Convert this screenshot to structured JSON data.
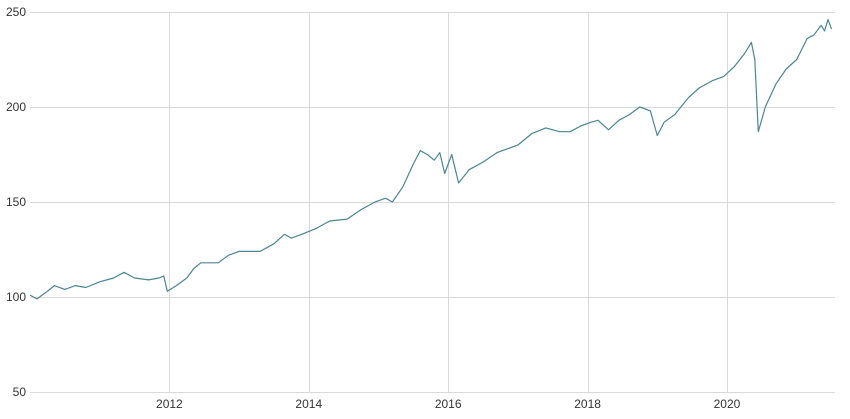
{
  "chart_data": {
    "type": "line",
    "title": "",
    "xlabel": "",
    "ylabel": "",
    "grid": true,
    "legend": "none",
    "xlim": [
      2010.0,
      2021.2
    ],
    "ylim": [
      50,
      250
    ],
    "x_ticks": [
      2012,
      2014,
      2016,
      2018,
      2020
    ],
    "x_tick_labels": [
      "2012",
      "2014",
      "2016",
      "2018",
      "2020"
    ],
    "y_ticks": [
      50,
      100,
      150,
      200,
      250
    ],
    "y_tick_labels": [
      "50",
      "100",
      "150",
      "200",
      "250"
    ],
    "series": [
      {
        "name": "value",
        "color": "#4a8594",
        "points": [
          [
            2010.0,
            101
          ],
          [
            2010.1,
            99
          ],
          [
            2010.25,
            103
          ],
          [
            2010.35,
            106
          ],
          [
            2010.5,
            104
          ],
          [
            2010.65,
            106
          ],
          [
            2010.8,
            105
          ],
          [
            2011.0,
            108
          ],
          [
            2011.2,
            110
          ],
          [
            2011.35,
            113
          ],
          [
            2011.5,
            110
          ],
          [
            2011.7,
            109
          ],
          [
            2011.85,
            110
          ],
          [
            2011.92,
            111
          ],
          [
            2011.97,
            103
          ],
          [
            2012.1,
            106
          ],
          [
            2012.25,
            110
          ],
          [
            2012.35,
            115
          ],
          [
            2012.45,
            118
          ],
          [
            2012.7,
            118
          ],
          [
            2012.85,
            122
          ],
          [
            2013.0,
            124
          ],
          [
            2013.3,
            124
          ],
          [
            2013.5,
            128
          ],
          [
            2013.65,
            133
          ],
          [
            2013.75,
            131
          ],
          [
            2013.9,
            133
          ],
          [
            2014.1,
            136
          ],
          [
            2014.3,
            140
          ],
          [
            2014.55,
            141
          ],
          [
            2014.75,
            146
          ],
          [
            2014.95,
            150
          ],
          [
            2015.1,
            152
          ],
          [
            2015.2,
            150
          ],
          [
            2015.35,
            158
          ],
          [
            2015.5,
            170
          ],
          [
            2015.6,
            177
          ],
          [
            2015.7,
            175
          ],
          [
            2015.8,
            172
          ],
          [
            2015.88,
            176
          ],
          [
            2015.95,
            165
          ],
          [
            2016.05,
            175
          ],
          [
            2016.15,
            160
          ],
          [
            2016.3,
            167
          ],
          [
            2016.5,
            171
          ],
          [
            2016.7,
            176
          ],
          [
            2016.85,
            178
          ],
          [
            2017.0,
            180
          ],
          [
            2017.2,
            186
          ],
          [
            2017.4,
            189
          ],
          [
            2017.6,
            187
          ],
          [
            2017.75,
            187
          ],
          [
            2017.9,
            190
          ],
          [
            2018.05,
            192
          ],
          [
            2018.15,
            193
          ],
          [
            2018.3,
            188
          ],
          [
            2018.45,
            193
          ],
          [
            2018.6,
            196
          ],
          [
            2018.75,
            200
          ],
          [
            2018.9,
            198
          ],
          [
            2019.0,
            185
          ],
          [
            2019.1,
            192
          ],
          [
            2019.25,
            196
          ],
          [
            2019.45,
            205
          ],
          [
            2019.6,
            210
          ],
          [
            2019.8,
            214
          ],
          [
            2019.95,
            216
          ],
          [
            2020.1,
            221
          ],
          [
            2020.25,
            228
          ],
          [
            2020.35,
            234
          ],
          [
            2020.4,
            225
          ],
          [
            2020.45,
            187
          ],
          [
            2020.55,
            200
          ],
          [
            2020.7,
            212
          ],
          [
            2020.85,
            220
          ],
          [
            2021.0,
            225
          ],
          [
            2021.15,
            236
          ],
          [
            2021.25,
            238
          ],
          [
            2021.35,
            243
          ],
          [
            2021.4,
            240
          ],
          [
            2021.45,
            246
          ],
          [
            2021.5,
            241
          ]
        ]
      }
    ]
  }
}
